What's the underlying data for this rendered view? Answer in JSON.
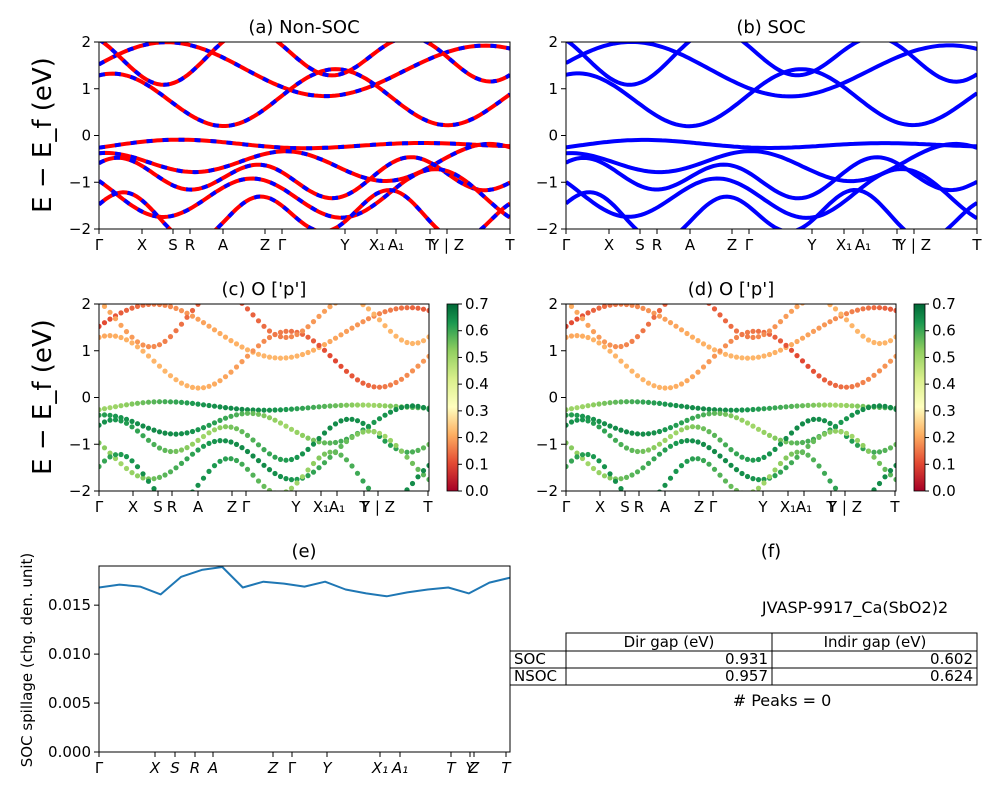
{
  "chart_data": [
    {
      "type": "line",
      "title": "(a) Non-SOC",
      "ylabel": "E − E_f (eV)",
      "ylim": [
        -2,
        2
      ],
      "yticks": [
        "2",
        "1",
        "0",
        "−1",
        "−2"
      ],
      "xticks": [
        "Γ",
        "X",
        "S",
        "R",
        "A",
        "Z",
        "Γ",
        "Y",
        "X₁",
        "A₁",
        "T",
        "Y | Z",
        "T"
      ],
      "series": [
        {
          "name": "",
          "color": "#ff0000",
          "style": "solid",
          "x": [
            0,
            1,
            2,
            3,
            4,
            5,
            6,
            7,
            8,
            9,
            10,
            11,
            12
          ],
          "y": [
            1.42,
            1.98,
            0.65,
            0.63,
            1.98,
            1.55,
            0.8,
            1.98,
            0.5,
            1.98,
            1.25,
            1.98,
            1.2
          ]
        },
        {
          "name": "",
          "color": "#0000ff",
          "style": "dashed",
          "x": [
            0,
            1,
            2,
            3,
            4,
            5,
            6,
            7,
            8,
            9,
            10,
            11,
            12
          ],
          "y": [
            1.42,
            1.98,
            0.65,
            0.63,
            1.98,
            1.55,
            0.8,
            1.98,
            0.5,
            1.98,
            1.25,
            1.98,
            1.2
          ]
        }
      ]
    },
    {
      "type": "line",
      "title": "(b) SOC",
      "ylim": [
        -2,
        2
      ],
      "yticks": [
        "2",
        "1",
        "0",
        "−1",
        "−2"
      ],
      "xticks": [
        "Γ",
        "X",
        "S",
        "R",
        "A",
        "Z",
        "Γ",
        "Y",
        "X₁",
        "A₁",
        "T",
        "Y | Z",
        "T"
      ],
      "series": [
        {
          "name": "",
          "color": "#0000ff",
          "style": "solid",
          "x": [
            0,
            1,
            2,
            3,
            4,
            5,
            6,
            7,
            8,
            9,
            10,
            11,
            12
          ],
          "y": [
            1.4,
            1.98,
            0.63,
            0.62,
            1.98,
            1.5,
            0.78,
            1.98,
            0.48,
            1.98,
            1.2,
            1.98,
            1.18
          ]
        }
      ]
    },
    {
      "type": "scatter",
      "title": "(c)  O ['p']",
      "ylabel": "E − E_f (eV)",
      "ylim": [
        -2,
        2
      ],
      "yticks": [
        "2",
        "1",
        "0",
        "−1",
        "−2"
      ],
      "xticks": [
        "Γ",
        "X",
        "S",
        "R",
        "A",
        "Z",
        "Γ",
        "Y",
        "X₁",
        "A₁",
        "T",
        "Y | Z",
        "T"
      ],
      "colorbar": {
        "min": 0.0,
        "max": 0.7,
        "ticks": [
          "0.7",
          "0.6",
          "0.5",
          "0.4",
          "0.3",
          "0.2",
          "0.1",
          "0.0"
        ],
        "colormap": "RdYlGn"
      }
    },
    {
      "type": "scatter",
      "title": "(d) O ['p']",
      "ylim": [
        -2,
        2
      ],
      "yticks": [
        "2",
        "1",
        "0",
        "−1",
        "−2"
      ],
      "xticks": [
        "Γ",
        "X",
        "S",
        "R",
        "A",
        "Z",
        "Γ",
        "Y",
        "X₁",
        "A₁",
        "T",
        "Y | Z",
        "T"
      ],
      "colorbar": {
        "min": 0.0,
        "max": 0.7,
        "ticks": [
          "0.7",
          "0.6",
          "0.5",
          "0.4",
          "0.3",
          "0.2",
          "0.1",
          "0.0"
        ],
        "colormap": "RdYlGn"
      }
    },
    {
      "type": "line",
      "title": "(e)",
      "ylabel": "SOC spillage (chg. den. unit)",
      "ylim": [
        0,
        0.019
      ],
      "yticks": [
        "0.015",
        "0.010",
        "0.005",
        "0.000"
      ],
      "xticks": [
        "Γ",
        "X",
        "S",
        "R",
        "A",
        "Z",
        "Γ",
        "Y",
        "X₁",
        "A₁",
        "T",
        "Y",
        "Z",
        "T"
      ],
      "series": [
        {
          "name": "",
          "color": "#1f77b4",
          "x": [
            0,
            0.05,
            0.1,
            0.15,
            0.2,
            0.25,
            0.3,
            0.35,
            0.4,
            0.45,
            0.5,
            0.55,
            0.6,
            0.65,
            0.7,
            0.75,
            0.8,
            0.85,
            0.9,
            0.95,
            1.0
          ],
          "y": [
            0.0168,
            0.0171,
            0.0169,
            0.0161,
            0.0179,
            0.0186,
            0.0189,
            0.0168,
            0.0174,
            0.0172,
            0.0169,
            0.0174,
            0.0166,
            0.0162,
            0.0159,
            0.0163,
            0.0166,
            0.0168,
            0.0162,
            0.0173,
            0.0178
          ]
        }
      ]
    }
  ],
  "panel_f": {
    "title": "(f)",
    "material": "JVASP-9917_Ca(SbO2)2",
    "table": {
      "headers": [
        "Dir gap (eV)",
        "Indir gap (eV)"
      ],
      "rows": [
        {
          "label": "SOC",
          "dir": "0.931",
          "indir": "0.602"
        },
        {
          "label": "NSOC",
          "dir": "0.957",
          "indir": "0.624"
        }
      ]
    },
    "peaks": "# Peaks = 0"
  }
}
